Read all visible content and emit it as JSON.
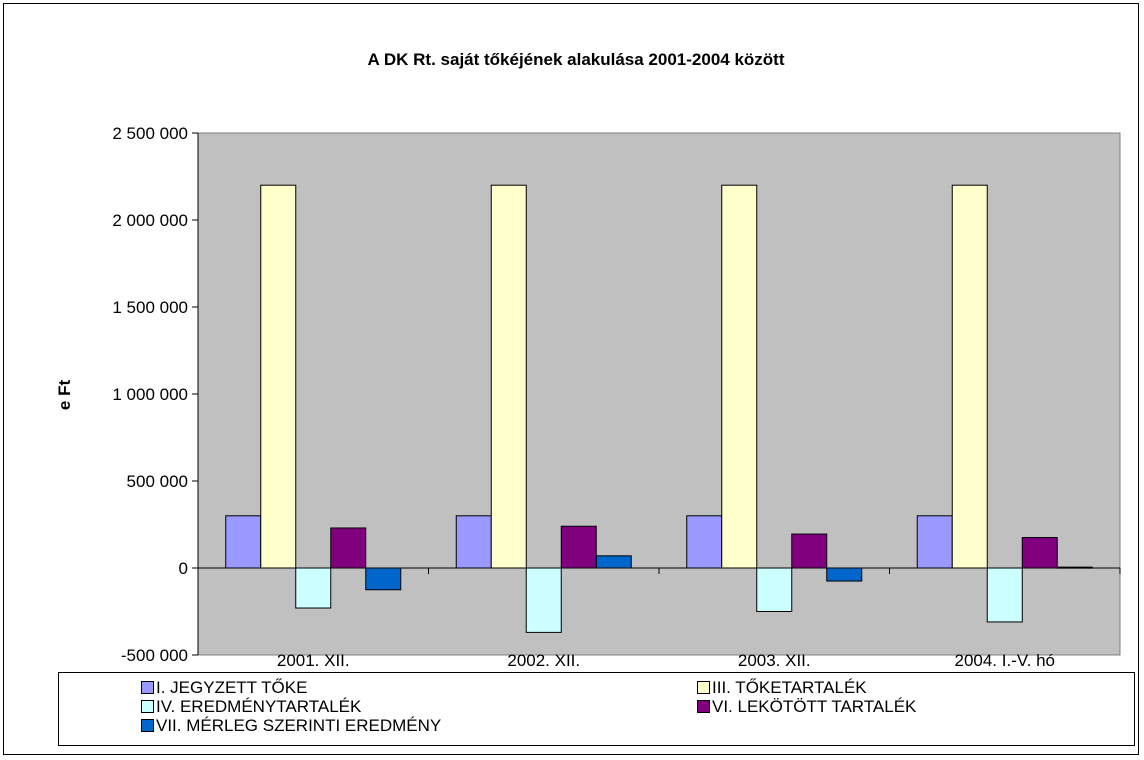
{
  "chart_data": {
    "type": "bar",
    "title": "A DK Rt. saját tőkéjének alakulása 2001-2004 között",
    "xlabel": "",
    "ylabel": "e Ft",
    "ylim": [
      -500000,
      2500000
    ],
    "yticks": [
      -500000,
      0,
      500000,
      1000000,
      1500000,
      2000000,
      2500000
    ],
    "ytick_labels": [
      "-500 000",
      "0",
      "500 000",
      "1 000 000",
      "1 500 000",
      "2 000 000",
      "2 500 000"
    ],
    "categories": [
      "2001. XII.",
      "2002. XII.",
      "2003. XII.",
      "2004. I.-V. hó"
    ],
    "grid": false,
    "plot_background": "#c0c0c0",
    "legend_position": "bottom",
    "series": [
      {
        "name": "I. JEGYZETT TŐKE",
        "color": "#9999ff",
        "values": [
          300000,
          300000,
          300000,
          300000
        ]
      },
      {
        "name": "III. TŐKETARTALÉK",
        "color": "#ffffcc",
        "values": [
          2200000,
          2200000,
          2200000,
          2200000
        ]
      },
      {
        "name": "IV. EREDMÉNYTARTALÉK",
        "color": "#ccffff",
        "values": [
          -230000,
          -370000,
          -250000,
          -310000
        ]
      },
      {
        "name": "VI. LEKÖTÖTT TARTALÉK",
        "color": "#800080",
        "values": [
          230000,
          240000,
          195000,
          175000
        ]
      },
      {
        "name": "VII. MÉRLEG SZERINTI EREDMÉNY",
        "color": "#0066cc",
        "values": [
          -125000,
          70000,
          -75000,
          5000
        ]
      }
    ]
  }
}
